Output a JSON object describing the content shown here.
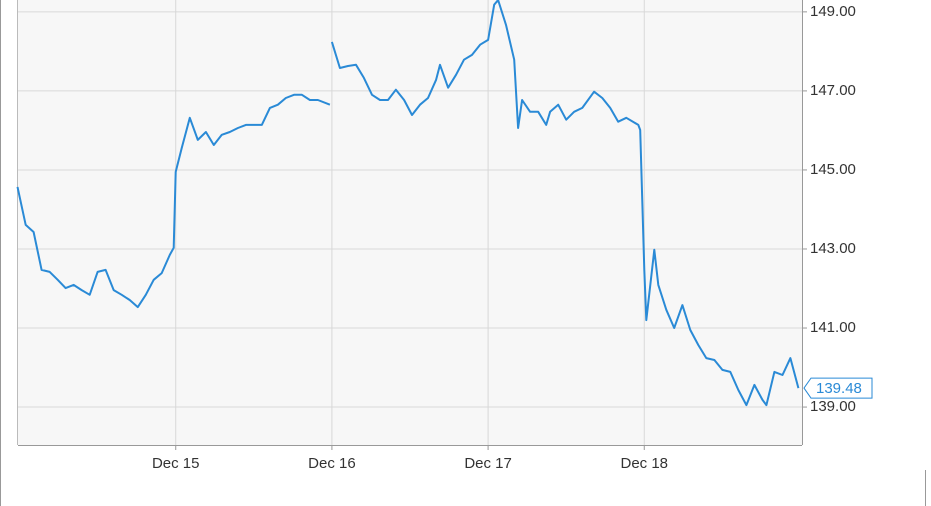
{
  "chart_data": {
    "type": "line",
    "x": [
      13.987,
      14.039,
      14.09,
      14.141,
      14.193,
      14.244,
      14.295,
      14.346,
      14.398,
      14.449,
      14.5,
      14.551,
      14.603,
      14.654,
      14.705,
      14.757,
      14.808,
      14.859,
      14.91,
      14.962,
      14.987,
      15.0,
      15.039,
      15.09,
      15.141,
      15.193,
      15.244,
      15.295,
      15.346,
      15.398,
      15.449,
      15.5,
      15.551,
      15.603,
      15.654,
      15.705,
      15.757,
      15.808,
      15.859,
      15.91,
      15.987,
      15.995,
      16.0,
      16.051,
      16.103,
      16.154,
      16.205,
      16.257,
      16.308,
      16.359,
      16.41,
      16.462,
      16.513,
      16.564,
      16.615,
      16.667,
      16.692,
      16.744,
      16.795,
      16.846,
      16.897,
      16.949,
      17.0,
      17.039,
      17.064,
      17.115,
      17.167,
      17.192,
      17.218,
      17.269,
      17.321,
      17.372,
      17.397,
      17.449,
      17.5,
      17.551,
      17.603,
      17.679,
      17.731,
      17.782,
      17.833,
      17.885,
      17.962,
      17.974,
      18.0,
      18.013,
      18.064,
      18.09,
      18.141,
      18.192,
      18.244,
      18.295,
      18.346,
      18.397,
      18.449,
      18.5,
      18.551,
      18.603,
      18.654,
      18.705,
      18.757,
      18.782,
      18.833,
      18.885,
      18.936,
      18.987
    ],
    "series": [
      {
        "color": "#2a8ad6",
        "values": [
          144.57,
          143.61,
          143.43,
          142.47,
          142.42,
          142.22,
          142.01,
          142.09,
          141.96,
          141.84,
          142.42,
          142.47,
          141.96,
          141.84,
          141.71,
          141.53,
          141.84,
          142.22,
          142.39,
          142.85,
          143.03,
          144.95,
          145.56,
          146.32,
          145.76,
          145.96,
          145.63,
          145.89,
          145.96,
          146.06,
          146.14,
          146.14,
          146.14,
          146.57,
          146.65,
          146.82,
          146.9,
          146.9,
          146.77,
          146.77,
          146.65,
          null,
          148.24,
          147.58,
          147.63,
          147.66,
          147.33,
          146.9,
          146.77,
          146.77,
          147.03,
          146.77,
          146.39,
          146.65,
          146.82,
          147.28,
          147.66,
          147.08,
          147.41,
          147.79,
          147.91,
          148.17,
          148.29,
          149.18,
          149.3,
          148.67,
          147.79,
          146.06,
          146.77,
          146.47,
          146.47,
          146.14,
          146.47,
          146.65,
          146.27,
          146.47,
          146.57,
          146.98,
          146.82,
          146.57,
          146.22,
          146.32,
          146.14,
          146.01,
          142.47,
          141.2,
          142.98,
          142.09,
          141.46,
          141.0,
          141.58,
          140.95,
          140.57,
          140.24,
          140.19,
          139.94,
          139.89,
          139.43,
          139.05,
          139.56,
          139.18,
          139.05,
          139.89,
          139.81,
          140.24,
          139.48
        ]
      }
    ],
    "xlim": [
      13.99,
      19.01
    ],
    "xticks": [
      {
        "value": 15,
        "label": "Dec 15"
      },
      {
        "value": 16,
        "label": "Dec 16"
      },
      {
        "value": 17,
        "label": "Dec 17"
      },
      {
        "value": 18,
        "label": "Dec 18"
      }
    ],
    "ylim": [
      138.04,
      149.3
    ],
    "yticks": [
      {
        "value": 139,
        "label": "139.00"
      },
      {
        "value": 141,
        "label": "141.00"
      },
      {
        "value": 143,
        "label": "143.00"
      },
      {
        "value": 145,
        "label": "145.00"
      },
      {
        "value": 147,
        "label": "147.00"
      },
      {
        "value": 149,
        "label": "149.00"
      }
    ],
    "grid": true
  }
}
